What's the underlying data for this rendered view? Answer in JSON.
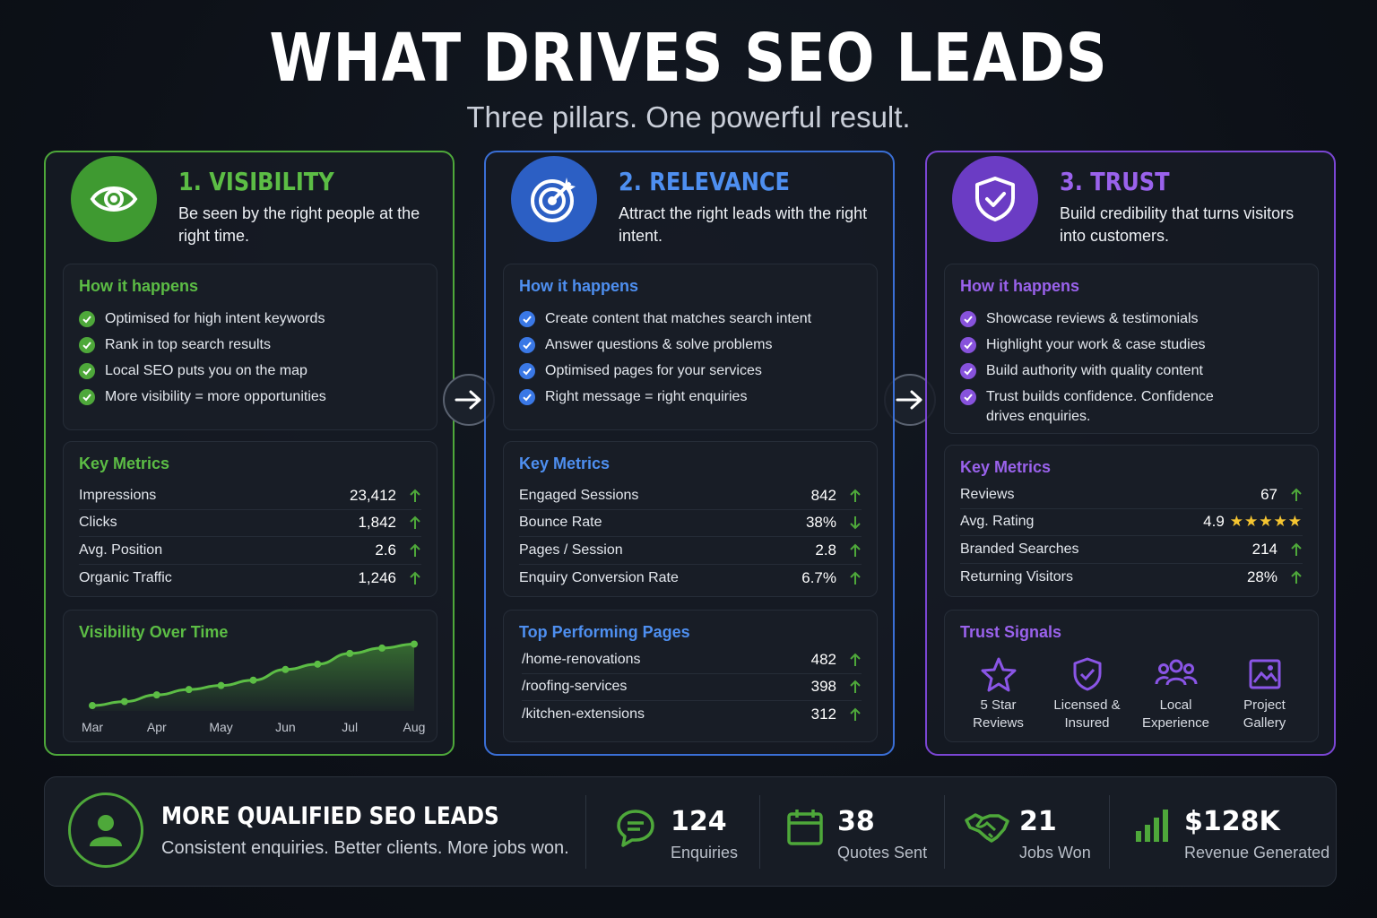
{
  "header": {
    "title": "WHAT DRIVES SEO LEADS",
    "subtitle": "Three pillars. One powerful result."
  },
  "pillars": [
    {
      "title": "1. VISIBILITY",
      "description": "Be seen by the right people at the right time.",
      "icon": "eye-icon",
      "color": "#4ea83a",
      "how_title": "How it happens",
      "how_items": [
        "Optimised for high intent keywords",
        "Rank in top search results",
        "Local SEO puts you on the map",
        "More visibility = more opportunities"
      ],
      "metrics_title": "Key Metrics",
      "metrics": [
        {
          "name": "Impressions",
          "value": "23,412",
          "trend": "up"
        },
        {
          "name": "Clicks",
          "value": "1,842",
          "trend": "up"
        },
        {
          "name": "Avg. Position",
          "value": "2.6",
          "trend": "up"
        },
        {
          "name": "Organic Traffic",
          "value": "1,246",
          "trend": "up"
        }
      ],
      "chart_title": "Visibility Over Time"
    },
    {
      "title": "2. RELEVANCE",
      "description": "Attract the right leads with the right intent.",
      "icon": "target-icon",
      "color": "#3a6fd6",
      "how_title": "How it happens",
      "how_items": [
        "Create content that matches search intent",
        "Answer questions & solve problems",
        "Optimised pages for your services",
        "Right message = right enquiries"
      ],
      "metrics_title": "Key Metrics",
      "metrics": [
        {
          "name": "Engaged Sessions",
          "value": "842",
          "trend": "up"
        },
        {
          "name": "Bounce Rate",
          "value": "38%",
          "trend": "down"
        },
        {
          "name": "Pages / Session",
          "value": "2.8",
          "trend": "up"
        },
        {
          "name": "Enquiry Conversion Rate",
          "value": "6.7%",
          "trend": "up"
        }
      ],
      "pages_title": "Top Performing Pages",
      "pages": [
        {
          "name": "/home-renovations",
          "value": "482",
          "trend": "up"
        },
        {
          "name": "/roofing-services",
          "value": "398",
          "trend": "up"
        },
        {
          "name": "/kitchen-extensions",
          "value": "312",
          "trend": "up"
        }
      ]
    },
    {
      "title": "3. TRUST",
      "description": "Build credibility that turns visitors into customers.",
      "icon": "shield-check-icon",
      "color": "#7b46d4",
      "how_title": "How it happens",
      "how_items": [
        "Showcase reviews & testimonials",
        "Highlight your work & case studies",
        "Build authority with quality content",
        "Trust builds confidence. Confidence drives enquiries."
      ],
      "metrics_title": "Key Metrics",
      "metrics": [
        {
          "name": "Reviews",
          "value": "67",
          "trend": "up"
        },
        {
          "name": "Avg. Rating",
          "value": "4.9",
          "trend": "stars",
          "stars": 5
        },
        {
          "name": "Branded Searches",
          "value": "214",
          "trend": "up"
        },
        {
          "name": "Returning Visitors",
          "value": "28%",
          "trend": "up"
        }
      ],
      "signals_title": "Trust Signals",
      "signals": [
        {
          "label": "5 Star Reviews",
          "icon": "star-icon"
        },
        {
          "label": "Licensed & Insured",
          "icon": "shield-check-icon"
        },
        {
          "label": "Local Experience",
          "icon": "team-icon"
        },
        {
          "label": "Project Gallery",
          "icon": "image-icon"
        }
      ]
    }
  ],
  "chart_data": {
    "type": "area",
    "title": "Visibility Over Time",
    "x": [
      "Mar",
      "Apr",
      "May",
      "Jun",
      "Jul",
      "Aug"
    ],
    "tick_labels": [
      "Mar",
      "Apr",
      "May",
      "Jun",
      "Jul",
      "Aug"
    ],
    "points": [
      {
        "x": 0,
        "y": 8
      },
      {
        "x": 0.5,
        "y": 14
      },
      {
        "x": 1,
        "y": 24
      },
      {
        "x": 1.5,
        "y": 32
      },
      {
        "x": 2,
        "y": 38
      },
      {
        "x": 2.5,
        "y": 46
      },
      {
        "x": 3,
        "y": 62
      },
      {
        "x": 3.5,
        "y": 70
      },
      {
        "x": 4,
        "y": 86
      },
      {
        "x": 4.5,
        "y": 94
      },
      {
        "x": 5,
        "y": 100
      }
    ],
    "ylim": [
      0,
      110
    ],
    "grid": false,
    "color": "#5cbd45"
  },
  "footer": {
    "title": "MORE QUALIFIED SEO LEADS",
    "subtitle": "Consistent enquiries. Better clients. More jobs won.",
    "stats": [
      {
        "value": "124",
        "label": "Enquiries",
        "icon": "chat-icon"
      },
      {
        "value": "38",
        "label": "Quotes Sent",
        "icon": "calendar-icon"
      },
      {
        "value": "21",
        "label": "Jobs Won",
        "icon": "handshake-icon"
      },
      {
        "value": "$128K",
        "label": "Revenue Generated",
        "icon": "bar-chart-icon"
      }
    ]
  }
}
